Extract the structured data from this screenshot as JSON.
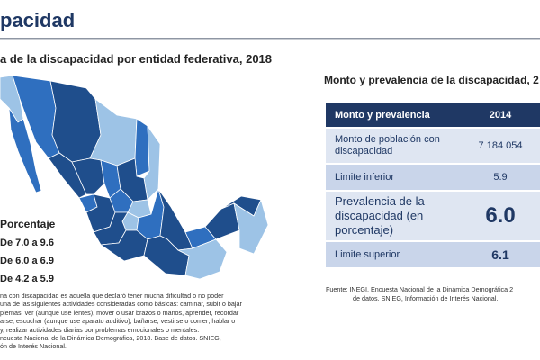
{
  "header": {
    "title": "pacidad"
  },
  "map_panel": {
    "title": "a de la discapacidad por entidad federativa, 2018",
    "legend_title": "Porcentaje",
    "legend": [
      {
        "label": "De 7.0 a 9.6",
        "color": "#1f4e8c"
      },
      {
        "label": "De 6.0 a 6.9",
        "color": "#2f6fbf"
      },
      {
        "label": "De 4.2 a 5.9",
        "color": "#9dc3e6"
      }
    ],
    "note_lines": [
      "na con discapacidad es aquella que declaró tener mucha dificultad o no poder",
      "una de las siguientes actividades consideradas como básicas: caminar, subir o bajar",
      "piernas, ver (aunque use lentes), mover o usar brazos o manos, aprender, recordar",
      "arse, escuchar (aunque use aparato auditivo), bañarse, vestirse o comer; hablar o",
      "y, realizar actividades diarias por problemas emocionales o mentales.",
      "ncuesta Nacional de la Dinámica Demográfica, 2018. Base de datos. SNIEG,",
      "ón de Interés Nacional."
    ]
  },
  "table_panel": {
    "title": "Monto y prevalencia de la discapacidad, 2",
    "header": {
      "col1": "Monto y prevalencia",
      "col2": "2014"
    },
    "rows": [
      {
        "label": "Monto de población con discapacidad",
        "value": "7 184 054"
      },
      {
        "label": "Limite inferior",
        "value": "5.9"
      },
      {
        "label": "Prevalencia de la discapacidad (en porcentaje)",
        "value": "6.0"
      },
      {
        "label": "Limite superior",
        "value": "6.1"
      }
    ],
    "source_label": "Fuente:",
    "source_line1": "INEGI. Encuesta Nacional de la Dinámica Demográfica 2",
    "source_line2": "de datos. SNIEG, Información de Interés Nacional."
  }
}
